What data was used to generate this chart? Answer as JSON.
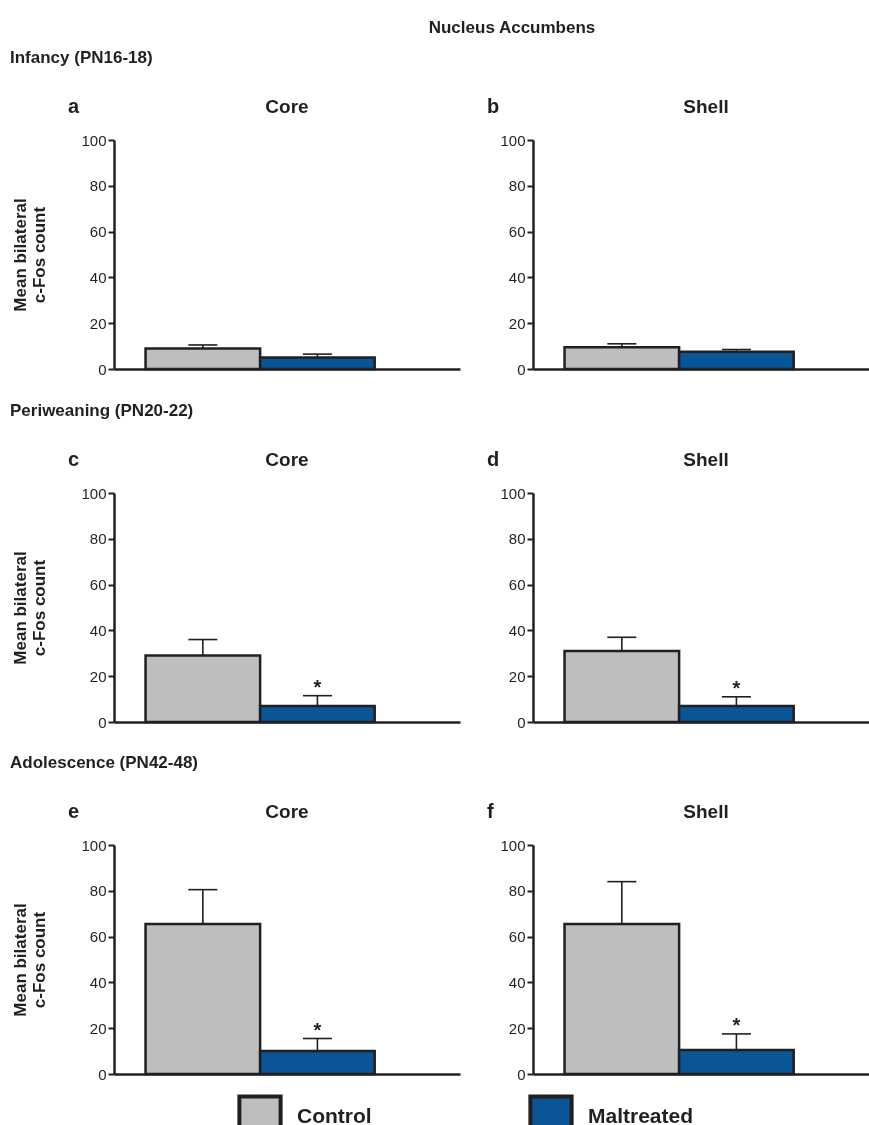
{
  "chart_data": [
    {
      "type": "bar",
      "title": "Core",
      "ylabel": "Mean bilateral\nc-Fos count",
      "annotations": [
        "Nucleus Accumbens",
        "Infancy (PN16-18)",
        "a"
      ],
      "categories": [
        null
      ],
      "tick_labels": "y",
      "ylim": [
        0,
        100
      ],
      "yticks": [
        0,
        20,
        40,
        60,
        80,
        100
      ],
      "series": [
        {
          "color": "#bcbec0",
          "values": [
            9
          ],
          "errors": [
            [
              9,
              10.5
            ]
          ]
        },
        {
          "color": "#0a5596",
          "values": [
            5
          ],
          "errors": [
            [
              5,
              6.5
            ]
          ]
        }
      ]
    },
    {
      "type": "bar",
      "title": "Shell",
      "annotations": [
        "b"
      ],
      "categories": [
        null
      ],
      "tick_labels": "y",
      "ylim": [
        0,
        100
      ],
      "yticks": [
        0,
        20,
        40,
        60,
        80,
        100
      ],
      "series": [
        {
          "color": "#bcbec0",
          "values": [
            9.5
          ],
          "errors": [
            [
              9.5,
              11
            ]
          ]
        },
        {
          "color": "#0a5596",
          "values": [
            7.5
          ],
          "errors": [
            [
              7.5,
              8.5
            ]
          ]
        }
      ]
    },
    {
      "type": "bar",
      "title": "Core",
      "ylabel": "Mean bilateral\nc-Fos count",
      "annotations": [
        "Periweaning (PN20-22)",
        "c"
      ],
      "categories": [
        null
      ],
      "tick_labels": "y",
      "ylim": [
        0,
        100
      ],
      "yticks": [
        0,
        20,
        40,
        60,
        80,
        100
      ],
      "series": [
        {
          "color": "#bcbec0",
          "values": [
            29
          ],
          "errors": [
            [
              29,
              36
            ]
          ]
        },
        {
          "color": "#0a5596",
          "values": [
            7
          ],
          "errors": [
            [
              7,
              11.5
            ]
          ],
          "value_labels": [
            "*"
          ]
        }
      ]
    },
    {
      "type": "bar",
      "title": "Shell",
      "annotations": [
        "d"
      ],
      "categories": [
        null
      ],
      "tick_labels": "y",
      "ylim": [
        0,
        100
      ],
      "yticks": [
        0,
        20,
        40,
        60,
        80,
        100
      ],
      "series": [
        {
          "color": "#bcbec0",
          "values": [
            31
          ],
          "errors": [
            [
              31,
              37
            ]
          ]
        },
        {
          "color": "#0a5596",
          "values": [
            7
          ],
          "errors": [
            [
              7,
              11
            ]
          ],
          "value_labels": [
            "*"
          ]
        }
      ]
    },
    {
      "type": "bar",
      "title": "Core",
      "ylabel": "Mean bilateral\nc-Fos count",
      "annotations": [
        "Adolescence (PN42-48)",
        "e"
      ],
      "categories": [
        null
      ],
      "tick_labels": "y",
      "legend": "bottom",
      "ylim": [
        0,
        100
      ],
      "yticks": [
        0,
        20,
        40,
        60,
        80,
        100
      ],
      "series": [
        {
          "name": "Control",
          "color": "#bcbec0",
          "values": [
            65.5
          ],
          "errors": [
            [
              65.5,
              80.5
            ]
          ]
        },
        {
          "name": "Maltreated",
          "color": "#0a5596",
          "values": [
            10
          ],
          "errors": [
            [
              10,
              15.5
            ]
          ],
          "value_labels": [
            "*"
          ]
        }
      ]
    },
    {
      "type": "bar",
      "title": "Shell",
      "annotations": [
        "f"
      ],
      "categories": [
        null
      ],
      "tick_labels": "y",
      "ylim": [
        0,
        100
      ],
      "yticks": [
        0,
        20,
        40,
        60,
        80,
        100
      ],
      "series": [
        {
          "color": "#bcbec0",
          "values": [
            65.5
          ],
          "errors": [
            [
              65.5,
              84
            ]
          ]
        },
        {
          "color": "#0a5596",
          "values": [
            10.5
          ],
          "errors": [
            [
              10.5,
              17.5
            ]
          ],
          "value_labels": [
            "*"
          ]
        }
      ]
    }
  ]
}
